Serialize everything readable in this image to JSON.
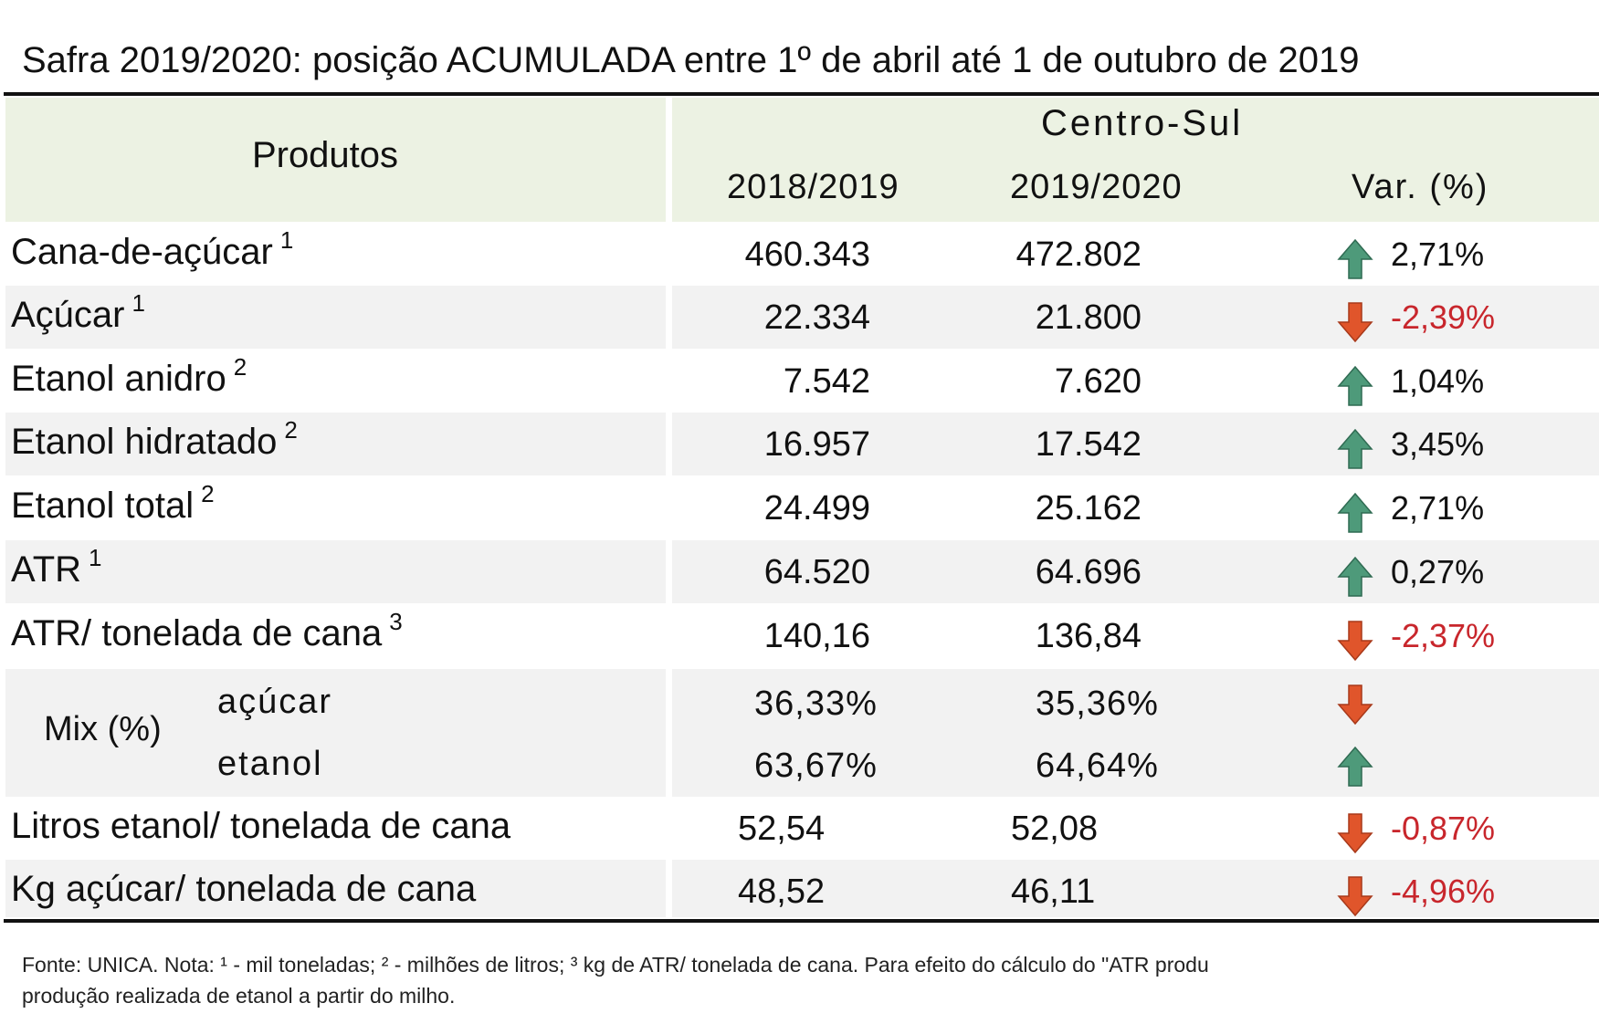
{
  "title": "Safra 2019/2020: posição ACUMULADA entre 1º de abril até 1 de outubro de 2019",
  "header": {
    "produtos": "Produtos",
    "region": "Centro-Sul",
    "year1": "2018/2019",
    "year2": "2019/2020",
    "var": "Var. (%)"
  },
  "rows": [
    {
      "label": "Cana-de-açúcar",
      "note": "1",
      "v1": "460.343",
      "v2": "472.802",
      "var": "2,71%",
      "dir": "up"
    },
    {
      "label": "Açúcar",
      "note": "1",
      "v1": "22.334",
      "v2": "21.800",
      "var": "-2,39%",
      "dir": "down"
    },
    {
      "label": "Etanol anidro",
      "note": "2",
      "v1": "7.542",
      "v2": "7.620",
      "var": "1,04%",
      "dir": "up"
    },
    {
      "label": "Etanol hidratado",
      "note": "2",
      "v1": "16.957",
      "v2": "17.542",
      "var": "3,45%",
      "dir": "up"
    },
    {
      "label": "Etanol total",
      "note": "2",
      "v1": "24.499",
      "v2": "25.162",
      "var": "2,71%",
      "dir": "up"
    },
    {
      "label": "ATR",
      "note": "1",
      "v1": "64.520",
      "v2": "64.696",
      "var": "0,27%",
      "dir": "up"
    },
    {
      "label": "ATR/ tonelada de cana",
      "note": "3",
      "v1": "140,16",
      "v2": "136,84",
      "var": "-2,37%",
      "dir": "down"
    }
  ],
  "mix": {
    "label": "Mix (%)",
    "acucar": {
      "label": "açúcar",
      "v1": "36,33%",
      "v2": "35,36%",
      "dir": "down"
    },
    "etanol": {
      "label": "etanol",
      "v1": "63,67%",
      "v2": "64,64%",
      "dir": "up"
    }
  },
  "rows_bottom": [
    {
      "label": "Litros etanol/ tonelada de cana",
      "v1": "52,54",
      "v2": "52,08",
      "var": "-0,87%",
      "dir": "down"
    },
    {
      "label": "Kg açúcar/ tonelada de cana",
      "v1": "48,52",
      "v2": "46,11",
      "var": "-4,96%",
      "dir": "down"
    }
  ],
  "footnote": {
    "line1": "Fonte: UNICA. Nota: ¹ - mil toneladas; ² - milhões de litros; ³   kg de ATR/ tonelada de cana. Para efeito do cálculo do \"ATR produ",
    "line2": "produção realizada de etanol a partir do milho."
  },
  "colors": {
    "up_arrow": "#4e9a7a",
    "down_arrow": "#e0552b",
    "negative_text": "#c8262c",
    "header_bg": "#ecf2e3",
    "stripe_bg": "#f2f2f2"
  },
  "icons": {
    "up": "arrow-up-icon",
    "down": "arrow-down-icon"
  }
}
